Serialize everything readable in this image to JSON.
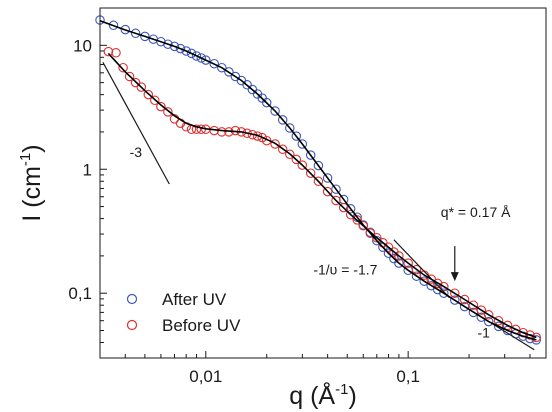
{
  "chart_data": {
    "type": "scatter",
    "x_scale": "log",
    "y_scale": "log",
    "xlim": [
      0.003,
      0.48
    ],
    "ylim": [
      0.03,
      20
    ],
    "x_ticks": [
      {
        "value": 0.01,
        "label": "0,01"
      },
      {
        "value": 0.1,
        "label": "0,1"
      }
    ],
    "y_ticks": [
      {
        "value": 0.1,
        "label": "0,1"
      },
      {
        "value": 1,
        "label": "1"
      },
      {
        "value": 10,
        "label": "10"
      }
    ],
    "xlabel": {
      "base": "q (Å",
      "exp": "-1",
      "close": ")"
    },
    "ylabel": {
      "base": "I (cm",
      "exp": "-1",
      "close": ")"
    },
    "legend_position": "bottom-left",
    "series": [
      {
        "name": "After UV",
        "color": "#3b58b8",
        "marker": "open-circle",
        "x": [
          0.003,
          0.0035,
          0.004,
          0.0045,
          0.005,
          0.0055,
          0.006,
          0.0065,
          0.007,
          0.0075,
          0.008,
          0.0085,
          0.009,
          0.0095,
          0.01,
          0.011,
          0.012,
          0.013,
          0.014,
          0.015,
          0.016,
          0.017,
          0.018,
          0.019,
          0.02,
          0.022,
          0.024,
          0.026,
          0.028,
          0.03,
          0.033,
          0.036,
          0.04,
          0.044,
          0.048,
          0.052,
          0.056,
          0.06,
          0.065,
          0.07,
          0.075,
          0.08,
          0.085,
          0.09,
          0.1,
          0.11,
          0.12,
          0.13,
          0.14,
          0.15,
          0.17,
          0.19,
          0.21,
          0.23,
          0.25,
          0.28,
          0.31,
          0.34,
          0.37,
          0.4,
          0.43
        ],
        "y": [
          16,
          14.5,
          13.4,
          12.5,
          11.8,
          11.2,
          10.7,
          10.2,
          9.8,
          9.4,
          9.0,
          8.6,
          8.2,
          7.9,
          7.6,
          7.1,
          6.6,
          6.1,
          5.6,
          5.2,
          4.8,
          4.4,
          4.05,
          3.75,
          3.45,
          2.95,
          2.5,
          2.15,
          1.85,
          1.6,
          1.3,
          1.07,
          0.85,
          0.69,
          0.57,
          0.48,
          0.41,
          0.355,
          0.305,
          0.265,
          0.235,
          0.21,
          0.19,
          0.175,
          0.153,
          0.137,
          0.125,
          0.115,
          0.107,
          0.1,
          0.088,
          0.078,
          0.07,
          0.064,
          0.059,
          0.054,
          0.05,
          0.047,
          0.045,
          0.043,
          0.042
        ]
      },
      {
        "name": "Before UV",
        "color": "#e03030",
        "marker": "open-circle",
        "x": [
          0.0033,
          0.0036,
          0.0039,
          0.0042,
          0.0045,
          0.0048,
          0.0052,
          0.0056,
          0.006,
          0.0065,
          0.007,
          0.0075,
          0.008,
          0.0085,
          0.009,
          0.0095,
          0.01,
          0.011,
          0.012,
          0.013,
          0.014,
          0.015,
          0.016,
          0.017,
          0.018,
          0.019,
          0.02,
          0.022,
          0.024,
          0.026,
          0.028,
          0.03,
          0.033,
          0.036,
          0.04,
          0.044,
          0.048,
          0.052,
          0.056,
          0.06,
          0.065,
          0.07,
          0.075,
          0.08,
          0.085,
          0.09,
          0.1,
          0.11,
          0.12,
          0.13,
          0.14,
          0.15,
          0.17,
          0.19,
          0.21,
          0.23,
          0.25,
          0.28,
          0.31,
          0.34,
          0.37,
          0.4,
          0.43
        ],
        "y": [
          8.9,
          8.7,
          6.6,
          5.6,
          5.0,
          4.6,
          4.0,
          3.6,
          3.2,
          2.9,
          2.55,
          2.35,
          2.2,
          2.1,
          2.1,
          2.1,
          2.1,
          2.05,
          2.0,
          2.0,
          2.05,
          2.0,
          1.95,
          1.9,
          1.85,
          1.8,
          1.7,
          1.6,
          1.45,
          1.32,
          1.2,
          1.08,
          0.93,
          0.8,
          0.66,
          0.56,
          0.49,
          0.43,
          0.39,
          0.35,
          0.31,
          0.28,
          0.255,
          0.235,
          0.215,
          0.2,
          0.175,
          0.155,
          0.14,
          0.13,
          0.12,
          0.113,
          0.1,
          0.089,
          0.08,
          0.073,
          0.067,
          0.06,
          0.055,
          0.051,
          0.048,
          0.046,
          0.044
        ]
      }
    ],
    "fit_curves": [
      {
        "color": "#000000",
        "x": [
          0.003,
          0.004,
          0.005,
          0.006,
          0.007,
          0.008,
          0.01,
          0.012,
          0.015,
          0.018,
          0.022,
          0.026,
          0.03,
          0.036,
          0.044,
          0.052,
          0.06,
          0.07,
          0.08,
          0.09,
          0.1,
          0.12,
          0.15,
          0.19,
          0.25,
          0.31,
          0.37,
          0.43
        ],
        "y": [
          15.8,
          13.3,
          11.8,
          10.7,
          9.8,
          9.0,
          7.6,
          6.6,
          5.2,
          4.05,
          2.95,
          2.15,
          1.6,
          1.07,
          0.69,
          0.48,
          0.355,
          0.265,
          0.21,
          0.175,
          0.153,
          0.125,
          0.1,
          0.078,
          0.059,
          0.05,
          0.045,
          0.042
        ]
      },
      {
        "color": "#000000",
        "x": [
          0.0033,
          0.004,
          0.005,
          0.006,
          0.007,
          0.008,
          0.009,
          0.01,
          0.012,
          0.015,
          0.018,
          0.022,
          0.026,
          0.03,
          0.036,
          0.044,
          0.052,
          0.06,
          0.07,
          0.08,
          0.09,
          0.1,
          0.12,
          0.15,
          0.19,
          0.25,
          0.31,
          0.37,
          0.43
        ],
        "y": [
          8.6,
          6.1,
          4.3,
          3.3,
          2.7,
          2.35,
          2.2,
          2.12,
          2.05,
          2.0,
          1.88,
          1.62,
          1.33,
          1.08,
          0.8,
          0.56,
          0.43,
          0.35,
          0.28,
          0.235,
          0.2,
          0.175,
          0.14,
          0.113,
          0.089,
          0.067,
          0.055,
          0.048,
          0.044
        ]
      }
    ],
    "slope_lines": [
      {
        "x": [
          0.0031,
          0.0066
        ],
        "y": [
          7.3,
          0.76
        ],
        "label": "-3",
        "label_at": [
          0.0042,
          1.25
        ]
      },
      {
        "x": [
          0.085,
          0.16
        ],
        "y": [
          0.27,
          0.092
        ],
        "label": "-1/υ = -1.7",
        "label_at": [
          0.034,
          0.142
        ]
      },
      {
        "x": [
          0.2,
          0.42
        ],
        "y": [
          0.074,
          0.035
        ],
        "label": "-1",
        "label_at": [
          0.22,
          0.044
        ]
      }
    ],
    "arrow_annotation": {
      "label": "q* = 0.17 Å",
      "x": 0.17,
      "from_y": 0.24,
      "to_y": 0.125,
      "label_at": [
        0.145,
        0.41
      ]
    }
  }
}
